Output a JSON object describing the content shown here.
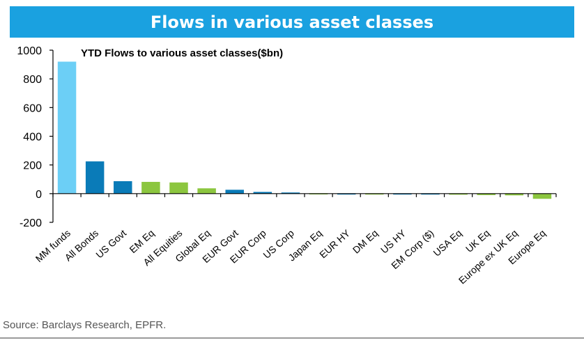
{
  "header": {
    "title": "Flows in various asset classes"
  },
  "footer": {
    "source": "Source: Barclays Research, EPFR."
  },
  "colors": {
    "banner": "#1aa1e0",
    "mm": "#6ccff6",
    "bonds": "#0a7bb8",
    "equity": "#8cc63f"
  },
  "chart_data": {
    "type": "bar",
    "title": "YTD Flows to various asset classes($bn)",
    "xlabel": "",
    "ylabel": "",
    "ylim": [
      -200,
      1000
    ],
    "yticks": [
      -200,
      0,
      200,
      400,
      600,
      800,
      1000
    ],
    "grid": false,
    "categories": [
      "MM funds",
      "All Bonds",
      "US Govt",
      "EM Eq",
      "All Equities",
      "Global Eq",
      "EUR Govt",
      "EUR Corp",
      "US Corp",
      "Japan Eq",
      "EUR HY",
      "DM Eq",
      "US HY",
      "EM Corp ($)",
      "USA Eq",
      "UK Eq",
      "Europe ex UK Eq",
      "Europe Eq"
    ],
    "values": [
      920,
      225,
      87,
      82,
      78,
      37,
      27,
      12,
      8,
      2,
      1,
      1,
      1,
      1,
      -4,
      -10,
      -12,
      -36
    ],
    "bar_colors": [
      "#6ccff6",
      "#0a7bb8",
      "#0a7bb8",
      "#8cc63f",
      "#8cc63f",
      "#8cc63f",
      "#0a7bb8",
      "#0a7bb8",
      "#0a7bb8",
      "#8cc63f",
      "#0a7bb8",
      "#8cc63f",
      "#0a7bb8",
      "#0a7bb8",
      "#8cc63f",
      "#8cc63f",
      "#8cc63f",
      "#8cc63f"
    ]
  }
}
